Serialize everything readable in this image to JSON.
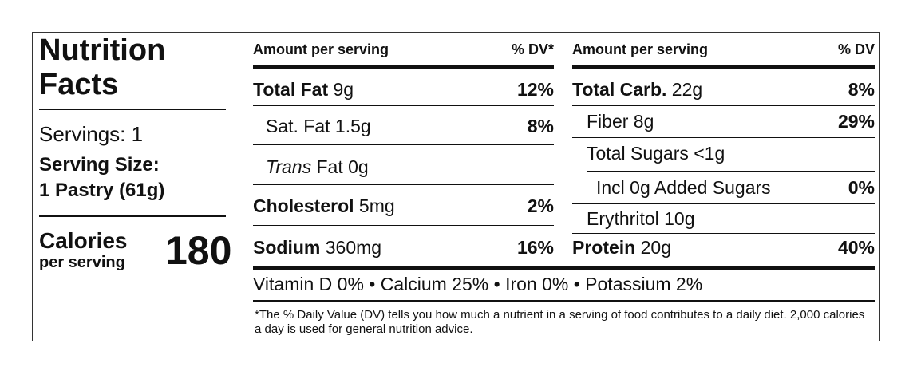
{
  "title": {
    "line1": "Nutrition",
    "line2": "Facts"
  },
  "servings": "Servings: 1",
  "serving_size": {
    "label": "Serving Size:",
    "value": "1 Pastry (61g)"
  },
  "calories": {
    "label": "Calories",
    "sublabel": "per serving",
    "value": "180"
  },
  "left_table": {
    "header_amount": "Amount per serving",
    "header_dv": "% DV*",
    "rows": [
      {
        "name": "Total Fat",
        "amount": " 9g",
        "dv": "12%"
      },
      {
        "name": "Sat. Fat",
        "amount": " 1.5g",
        "dv": "8%"
      },
      {
        "name": "Trans",
        "amount": " Fat 0g",
        "dv": ""
      },
      {
        "name": "Cholesterol",
        "amount": " 5mg",
        "dv": "2%"
      },
      {
        "name": "Sodium",
        "amount": " 360mg",
        "dv": "16%"
      }
    ]
  },
  "right_table": {
    "header_amount": "Amount per serving",
    "header_dv": "% DV",
    "rows": [
      {
        "name": "Total Carb.",
        "amount": " 22g",
        "dv": "8%"
      },
      {
        "name": "Fiber",
        "amount": " 8g",
        "dv": "29%"
      },
      {
        "name": "Total Sugars",
        "amount": " <1g",
        "dv": ""
      },
      {
        "name": "Incl 0g Added Sugars",
        "amount": "",
        "dv": "0%"
      },
      {
        "name": "Erythritol",
        "amount": " 10g",
        "dv": ""
      },
      {
        "name": "Protein",
        "amount": " 20g",
        "dv": "40%"
      }
    ]
  },
  "vitamins": "Vitamin D 0%  •  Calcium 25%  •  Iron 0%  •  Potassium 2%",
  "footnote": "*The % Daily Value (DV) tells you how much a nutrient in a serving of food contributes to a daily diet. 2,000 calories a day is used for general nutrition advice."
}
